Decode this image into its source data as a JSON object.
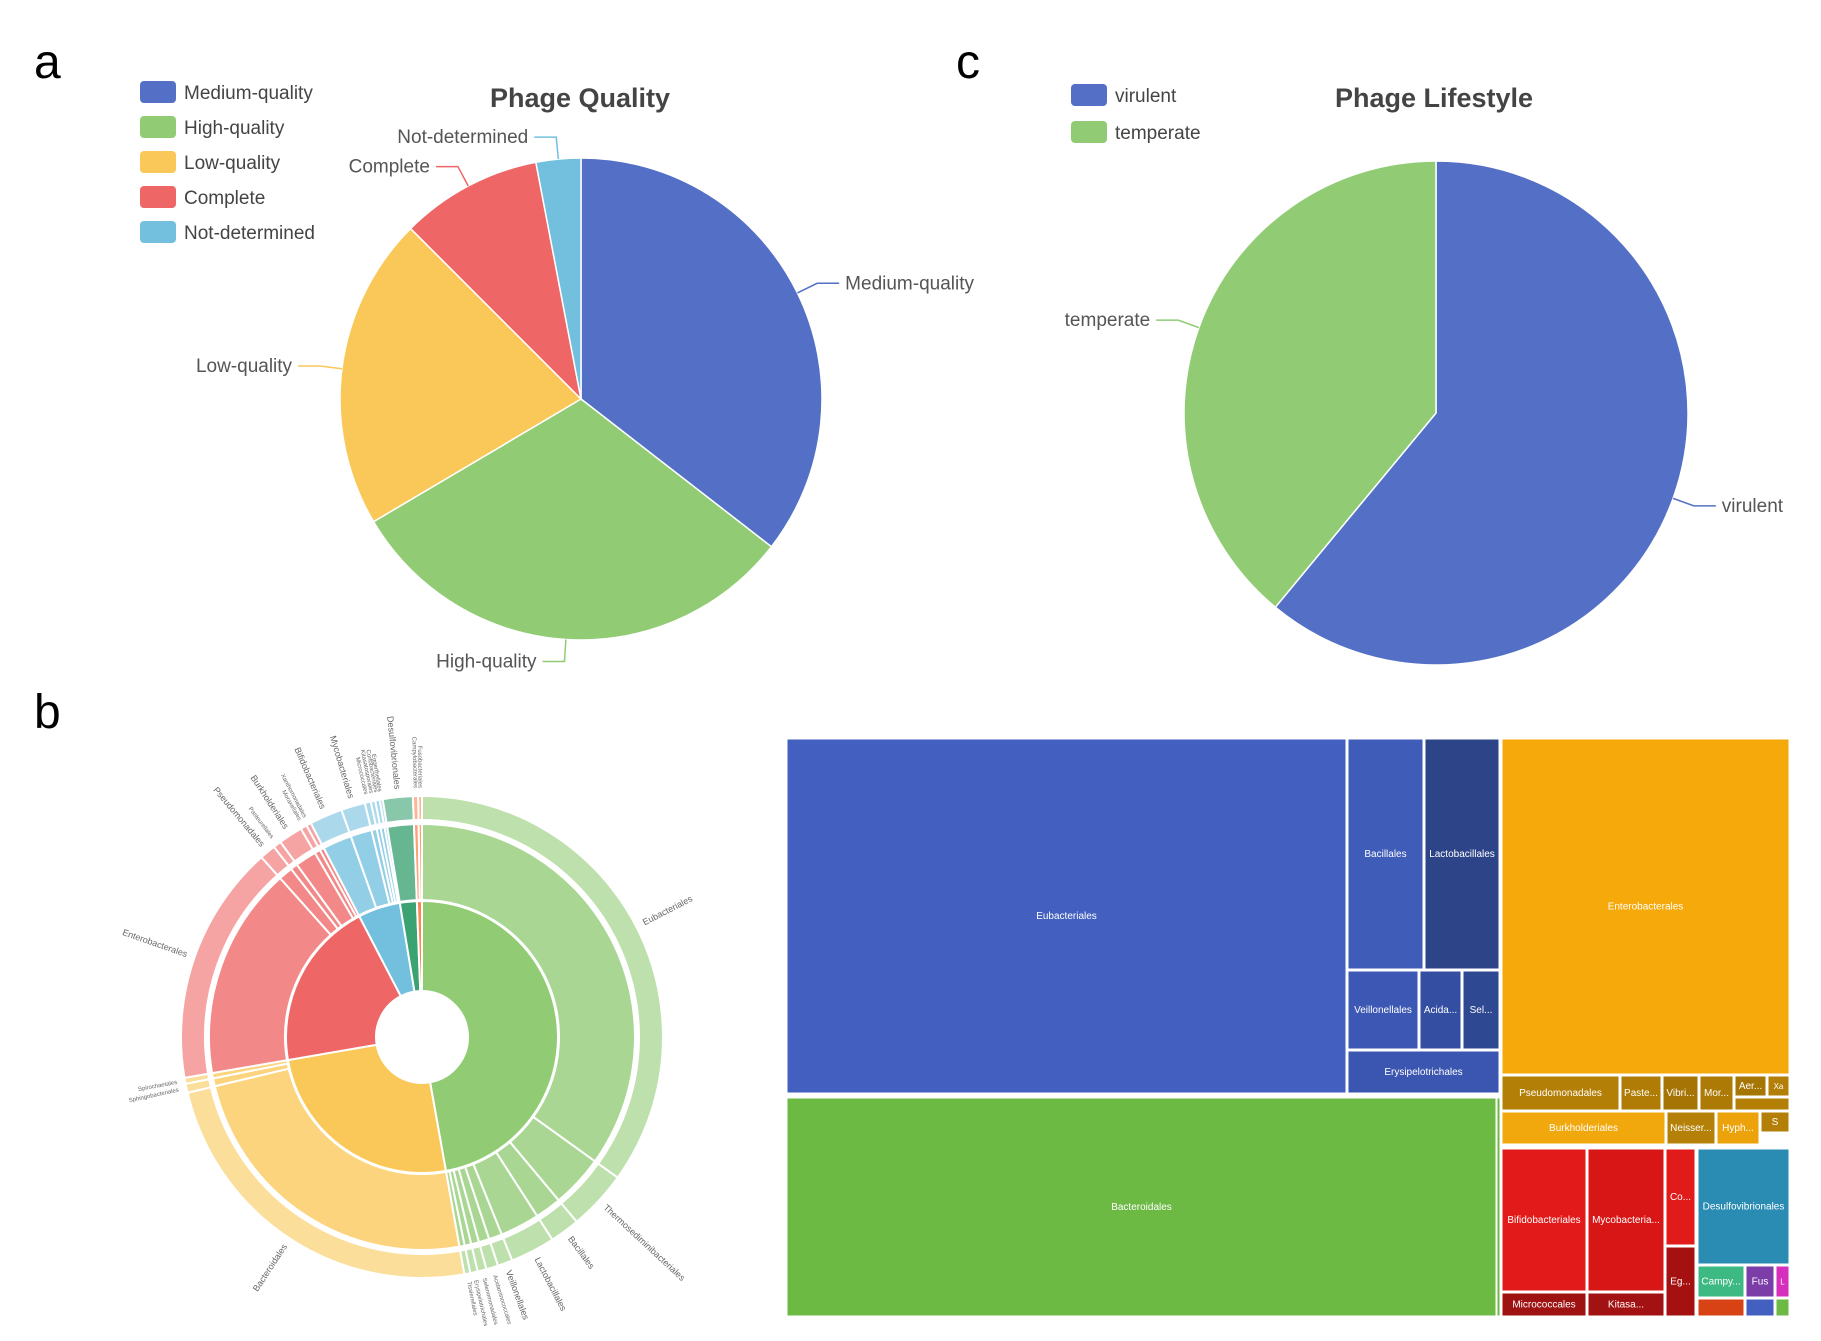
{
  "panel_labels": {
    "a": "a",
    "b": "b",
    "c": "c"
  },
  "chart_data": [
    {
      "id": "phage-quality",
      "type": "pie",
      "title": "Phage Quality",
      "legend_position": "top-left",
      "slices": [
        {
          "label": "Medium-quality",
          "value": 35.5,
          "color": "#5470c6"
        },
        {
          "label": "High-quality",
          "value": 31.0,
          "color": "#91cc75"
        },
        {
          "label": "Low-quality",
          "value": 21.0,
          "color": "#fac858"
        },
        {
          "label": "Complete",
          "value": 9.5,
          "color": "#ee6666"
        },
        {
          "label": "Not-determined",
          "value": 3.0,
          "color": "#73c0de"
        }
      ]
    },
    {
      "id": "phage-lifestyle",
      "type": "pie",
      "title": "Phage Lifestyle",
      "legend_position": "top-left",
      "slices": [
        {
          "label": "virulent",
          "value": 61,
          "color": "#5470c6"
        },
        {
          "label": "temperate",
          "value": 39,
          "color": "#91cc75"
        }
      ]
    },
    {
      "id": "host-sunburst",
      "type": "sunburst",
      "groups": [
        {
          "value": 47,
          "color": "#91cc75",
          "children": [
            {
              "label": "Eubacteriales",
              "value": 35
            },
            {
              "label": "Thermosediminibacteriales",
              "value": 4
            },
            {
              "label": "Bacillales",
              "value": 2
            },
            {
              "label": "Lactobacillales",
              "value": 3
            },
            {
              "label": "Veillonellales",
              "value": 1
            },
            {
              "label": "Acidaminococcales",
              "value": 0.8
            },
            {
              "label": "Selenomonadales",
              "value": 0.6
            },
            {
              "label": "Erysipelotrichales",
              "value": 0.5
            },
            {
              "label": "Tissierellales",
              "value": 0.4
            }
          ]
        },
        {
          "value": 25,
          "color": "#fac858",
          "children": [
            {
              "label": "Bacteroidales",
              "value": 24
            },
            {
              "label": "Sphingobacteriales",
              "value": 0.6
            },
            {
              "label": "Spirochaetales",
              "value": 0.4
            }
          ]
        },
        {
          "value": 20,
          "color": "#ee6666",
          "children": [
            {
              "label": "Enterobacterales",
              "value": 15
            },
            {
              "label": "Pseudomonadales",
              "value": 1
            },
            {
              "label": "Pasteurellales",
              "value": 0.5
            },
            {
              "label": "Burkholderiales",
              "value": 1.5
            },
            {
              "label": "Moraxellales",
              "value": 0.4
            },
            {
              "label": "Xanthomonadales",
              "value": 0.3
            }
          ]
        },
        {
          "value": 5,
          "color": "#73c0de",
          "children": [
            {
              "label": "Bifidobacteriales",
              "value": 2.2
            },
            {
              "label": "Mycobacteriales",
              "value": 1.6
            },
            {
              "label": "Micrococcales",
              "value": 0.4
            },
            {
              "label": "Kitasatosporales",
              "value": 0.3
            },
            {
              "label": "Coriobacteriales",
              "value": 0.3
            },
            {
              "label": "Eggerthellales",
              "value": 0.2
            }
          ]
        },
        {
          "value": 2,
          "color": "#3ba272",
          "children": [
            {
              "label": "Desulfovibrionales",
              "value": 2
            }
          ]
        },
        {
          "value": 0.6,
          "color": "#fc8452",
          "children": [
            {
              "label": "Campylobacterales",
              "value": 0.35
            },
            {
              "label": "Fusobacteriales",
              "value": 0.25
            }
          ]
        }
      ]
    },
    {
      "id": "host-treemap",
      "type": "treemap",
      "nodes": [
        {
          "label": "Eubacteriales",
          "color": "#4360c0"
        },
        {
          "label": "Bacillales",
          "color": "#3f5cb8"
        },
        {
          "label": "Lactobacillales",
          "color": "#2d4488"
        },
        {
          "label": "Veillonellales",
          "color": "#3c58b4"
        },
        {
          "label": "Acida...",
          "color": "#344ea2"
        },
        {
          "label": "Sel...",
          "color": "#2f4892"
        },
        {
          "label": "Erysipelotrichales",
          "color": "#3a56b0"
        },
        {
          "label": "Bacteroidales",
          "color": "#6cb944"
        },
        {
          "label": "Enterobacterales",
          "color": "#f5a90a"
        },
        {
          "label": "Pseudomonadales",
          "color": "#b37f06"
        },
        {
          "label": "Paste...",
          "color": "#b07c05"
        },
        {
          "label": "Vibri...",
          "color": "#a57404"
        },
        {
          "label": "Mor...",
          "color": "#ad7a05"
        },
        {
          "label": "Aer...",
          "color": "#a67604"
        },
        {
          "label": "Xa",
          "color": "#b37f06"
        },
        {
          "label": "Burkholderiales",
          "color": "#f1a80c"
        },
        {
          "label": "Neisser...",
          "color": "#b58007"
        },
        {
          "label": "Hyph...",
          "color": "#eca30b"
        },
        {
          "label": "S",
          "color": "#b37f06"
        },
        {
          "label": "Bifidobacteriales",
          "color": "#e21a1a"
        },
        {
          "label": "Mycobacteria...",
          "color": "#d91616"
        },
        {
          "label": "Co...",
          "color": "#e11a1a"
        },
        {
          "label": "Eg...",
          "color": "#a51010"
        },
        {
          "label": "Micrococcales",
          "color": "#9e1212"
        },
        {
          "label": "Kitasa...",
          "color": "#a31212"
        },
        {
          "label": "Desulfovibrionales",
          "color": "#2a8bb3"
        },
        {
          "label": "Campy...",
          "color": "#3dba84"
        },
        {
          "label": "Fus",
          "color": "#7b3ea8"
        },
        {
          "label": "L",
          "color": "#d62ebd"
        }
      ]
    }
  ]
}
